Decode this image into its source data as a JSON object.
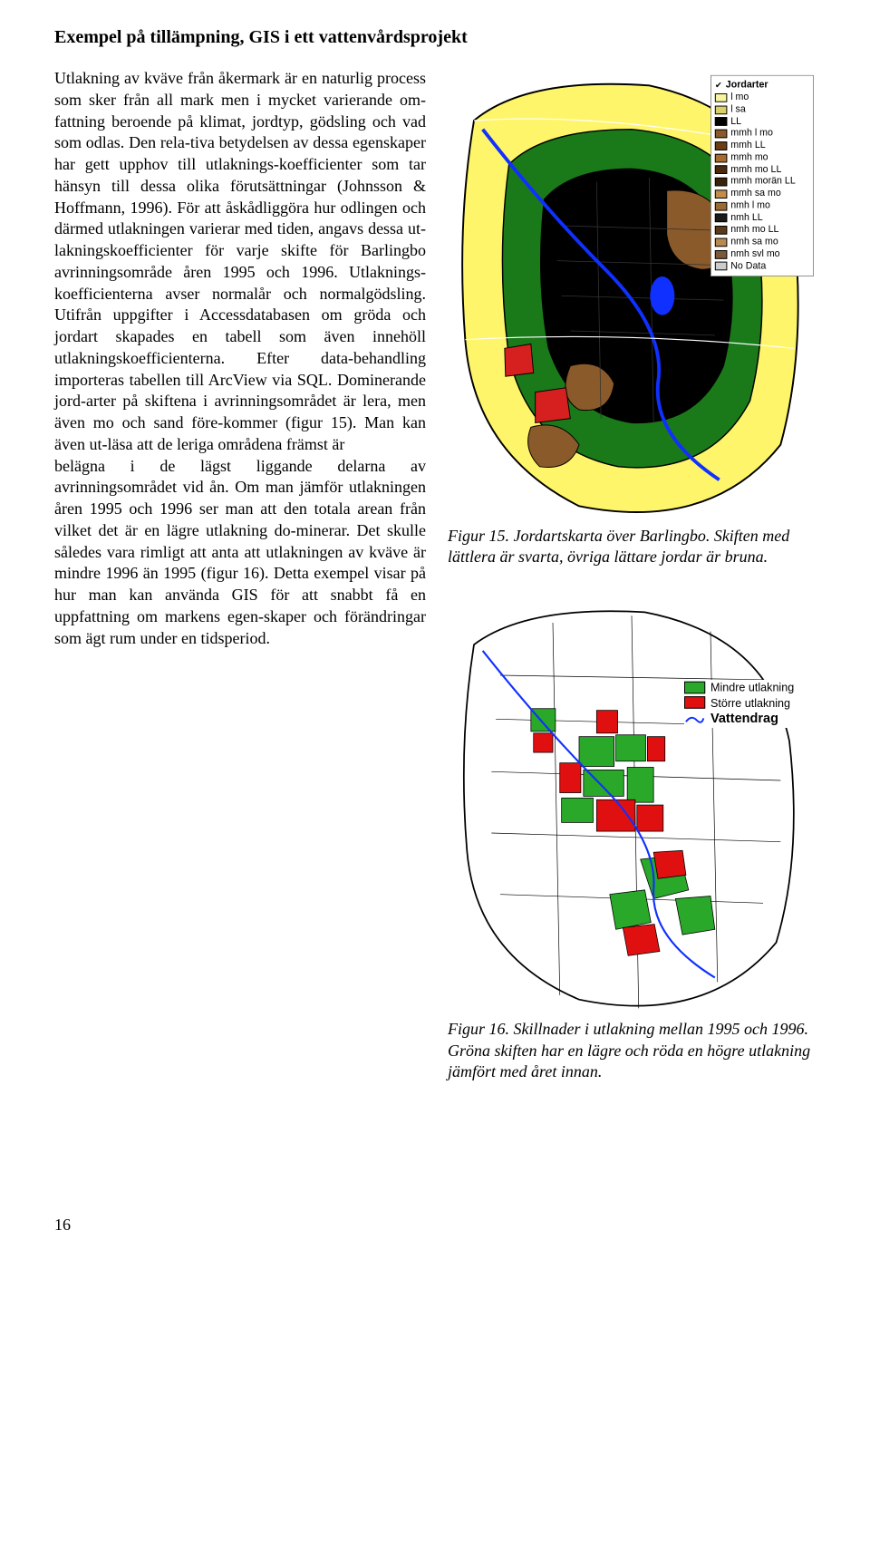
{
  "title": "Exempel på tillämpning, GIS i ett vattenvårdsprojekt",
  "body": {
    "p1": "Utlakning av kväve från åkermark är en naturlig process som sker från all mark men i mycket varierande om-fattning beroende på klimat, jordtyp, gödsling och vad som odlas. Den rela-tiva betydelsen av dessa egenskaper har gett upphov till utlaknings-koefficienter som tar hänsyn till dessa olika förutsättningar (Johnsson & Hoffmann, 1996). För att åskådliggöra hur odlingen och därmed utlakningen varierar med tiden, angavs dessa ut-lakningskoefficienter för varje skifte för Barlingbo avrinningsområde åren 1995 och 1996. Utlaknings-koefficienterna avser normalår och normalgödsling. Utifrån uppgifter i Accessdatabasen om gröda och jordart skapades en tabell som även innehöll utlakningskoefficienterna. Efter data-behandling importeras tabellen till ArcView via SQL. Dominerande jord-arter på skiftena i avrinningsområdet är lera, men även mo och sand före-kommer (figur 15). Man kan även ut-läsa att de leriga områdena främst är",
    "p2": "belägna i de lägst liggande delarna av avrinningsområdet vid ån. Om man jämför utlakningen åren 1995 och 1996 ser man att den totala arean från vilket det är en lägre utlakning do-minerar. Det skulle således vara rimligt att anta att utlakningen av kväve är mindre 1996 än 1995 (figur 16). Detta exempel visar på hur man kan använda GIS för att snabbt få en uppfattning om markens egen-skaper och förändringar som ägt rum under en tidsperiod."
  },
  "figure1": {
    "caption": "Figur 15. Jordartskarta över Barlingbo. Skiften med lättlera är svarta, övriga lättare jordar är bruna.",
    "legend_title": "Jordarter",
    "legend_items": [
      {
        "label": "l mo",
        "color": "#f7f3a0"
      },
      {
        "label": "l sa",
        "color": "#d9d06a"
      },
      {
        "label": "LL",
        "color": "#000000"
      },
      {
        "label": "mmh l mo",
        "color": "#8a5a2a"
      },
      {
        "label": "mmh LL",
        "color": "#6b3d14"
      },
      {
        "label": "mmh mo",
        "color": "#a86b2f"
      },
      {
        "label": "mmh mo LL",
        "color": "#4a2a0e"
      },
      {
        "label": "mmh morän LL",
        "color": "#3a2208"
      },
      {
        "label": "mmh sa mo",
        "color": "#c28c4a"
      },
      {
        "label": "nmh l mo",
        "color": "#9a6a30"
      },
      {
        "label": "nmh LL",
        "color": "#1a1a1a"
      },
      {
        "label": "nmh mo LL",
        "color": "#5a3a1a"
      },
      {
        "label": "nmh sa mo",
        "color": "#b88a50"
      },
      {
        "label": "nmh svl mo",
        "color": "#7a5a3a"
      },
      {
        "label": "No Data",
        "color": "#cccccc"
      }
    ],
    "colors": {
      "background": "#ffffff",
      "outer": "#fff56a",
      "mid_ring": "#1a7a1a",
      "core": "#000000",
      "brown_patch": "#8a5a2a",
      "red_patch": "#d62020",
      "river": "#1030ff",
      "outline": "#000000"
    }
  },
  "figure2": {
    "caption": "Figur 16. Skillnader i utlakning mellan 1995 och 1996. Gröna skiften har en lägre och röda en högre utlakning jämfört med året innan.",
    "legend": {
      "less": {
        "label": "Mindre utlakning",
        "color": "#2aa82a"
      },
      "more": {
        "label": "Större utlakning",
        "color": "#e01010"
      },
      "water": "Vattendrag"
    },
    "colors": {
      "background": "#ffffff",
      "boundary": "#000000",
      "river": "#1030ff",
      "green": "#2aa82a",
      "red": "#e01010"
    }
  },
  "page_number": "16"
}
